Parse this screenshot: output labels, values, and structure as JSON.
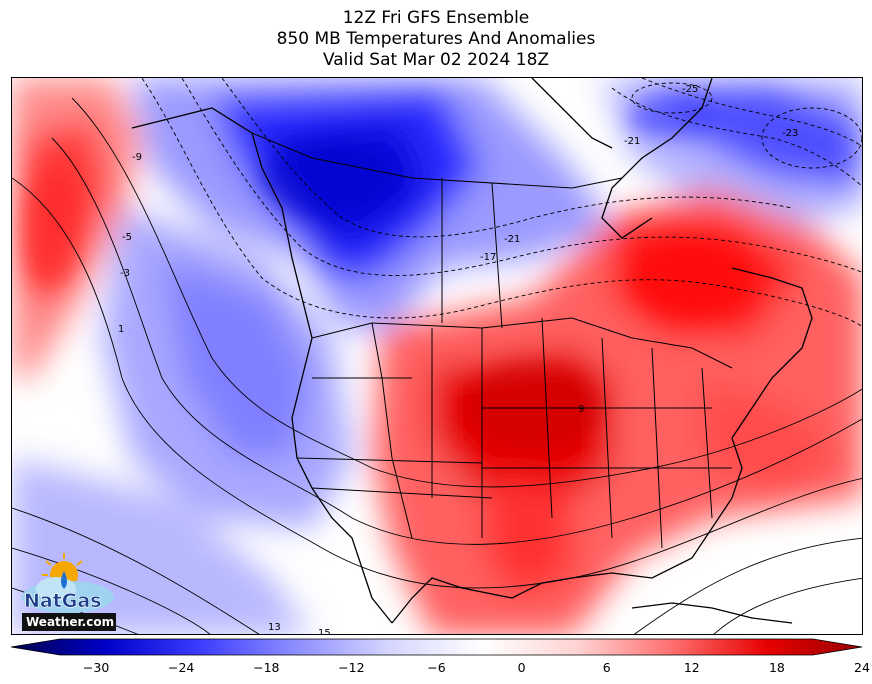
{
  "title": {
    "line1": "12Z Fri GFS Ensemble",
    "line2": "850 MB Temperatures And Anomalies",
    "line3": "Valid Sat Mar 02 2024 18Z"
  },
  "colorbar": {
    "min": -36,
    "max": 24,
    "ticks": [
      "−30",
      "−24",
      "−18",
      "−12",
      "−6",
      "0",
      "6",
      "12",
      "18",
      "24"
    ],
    "tick_values": [
      -30,
      -24,
      -18,
      -12,
      -6,
      0,
      6,
      12,
      18,
      24
    ],
    "colors": [
      "#00004a",
      "#0000c8",
      "#3c3cff",
      "#8c8cff",
      "#d6d6ff",
      "#ffffff",
      "#ffd2d2",
      "#ff6e6e",
      "#e60000",
      "#960000"
    ]
  },
  "contour_labels": [
    "-25",
    "-23",
    "-21",
    "-21",
    "-17",
    "-9",
    "-5",
    "-3",
    "1",
    "9",
    "13",
    "15"
  ],
  "logo": {
    "name": "NatGas",
    "domain": "Weather.com"
  },
  "map": {
    "region": "North America",
    "variable": "850 mb temperature anomaly",
    "colors": {
      "warm_core": "#e40000",
      "warm": "#ff5a5a",
      "cold_core": "#1414ff",
      "cold": "#9a9aff",
      "neutral": "#ffffff"
    }
  }
}
